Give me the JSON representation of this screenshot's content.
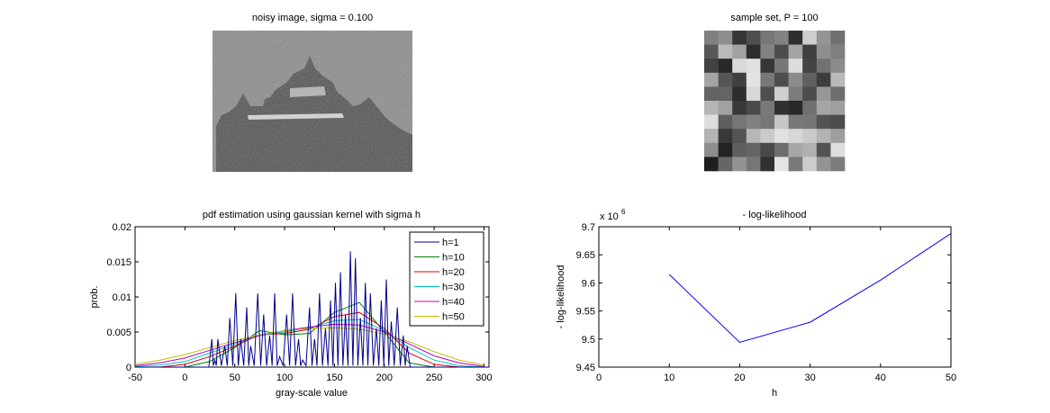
{
  "figure": {
    "noisy_title": "noisy image, sigma = 0.100",
    "sample_title": "sample set, P = 100"
  },
  "chart_data": [
    {
      "type": "line",
      "title": "pdf estimation using gaussian kernel with sigma h",
      "xlabel": "gray-scale value",
      "ylabel": "prob.",
      "xlim": [
        -50,
        305
      ],
      "ylim": [
        0,
        0.02
      ],
      "xticks": [
        "-50",
        "0",
        "50",
        "100",
        "150",
        "200",
        "250",
        "300"
      ],
      "yticks": [
        "0",
        "0.005",
        "0.01",
        "0.015",
        "0.02"
      ],
      "legend_position": "top-right",
      "series": [
        {
          "name": "h=1",
          "color": "#00008b"
        },
        {
          "name": "h=10",
          "color": "#008000"
        },
        {
          "name": "h=20",
          "color": "#e00000"
        },
        {
          "name": "h=30",
          "color": "#00bfbf"
        },
        {
          "name": "h=40",
          "color": "#bf00bf"
        },
        {
          "name": "h=50",
          "color": "#bfbf00"
        }
      ],
      "x": [
        -50,
        -25,
        0,
        25,
        50,
        75,
        100,
        125,
        150,
        175,
        200,
        225,
        250,
        275,
        300
      ],
      "values": {
        "h=10": [
          0,
          0,
          0,
          0.0008,
          0.0028,
          0.0052,
          0.0046,
          0.0048,
          0.0078,
          0.0092,
          0.005,
          0.0006,
          0,
          0,
          0
        ],
        "h=20": [
          0,
          0,
          0.0004,
          0.0015,
          0.003,
          0.0046,
          0.0048,
          0.0054,
          0.0072,
          0.0078,
          0.0055,
          0.002,
          0.0004,
          0,
          0
        ],
        "h=30": [
          0.0001,
          0.0003,
          0.0008,
          0.002,
          0.0033,
          0.0045,
          0.005,
          0.0056,
          0.0066,
          0.0068,
          0.0052,
          0.0028,
          0.001,
          0.0002,
          0
        ],
        "h=40": [
          0.0002,
          0.0006,
          0.0013,
          0.0024,
          0.0035,
          0.0045,
          0.0052,
          0.0057,
          0.0061,
          0.006,
          0.005,
          0.0033,
          0.0016,
          0.0006,
          0.0001
        ],
        "h=50": [
          0.0004,
          0.001,
          0.0018,
          0.0028,
          0.0038,
          0.0046,
          0.0052,
          0.0055,
          0.0056,
          0.0054,
          0.0047,
          0.0036,
          0.0022,
          0.001,
          0.0003
        ]
      },
      "h1_peaks": [
        [
          27,
          0.004
        ],
        [
          30,
          0.001
        ],
        [
          33,
          0.004
        ],
        [
          40,
          0.003
        ],
        [
          45,
          0.007
        ],
        [
          51,
          0.0105
        ],
        [
          56,
          0.004
        ],
        [
          62,
          0.0085
        ],
        [
          66,
          0.003
        ],
        [
          73,
          0.0105
        ],
        [
          79,
          0.0075
        ],
        [
          85,
          0.0045
        ],
        [
          90,
          0.0105
        ],
        [
          95,
          0.0015
        ],
        [
          102,
          0.0075
        ],
        [
          108,
          0.0105
        ],
        [
          114,
          0.004
        ],
        [
          118,
          0.001
        ],
        [
          125,
          0.0085
        ],
        [
          130,
          0.004
        ],
        [
          135,
          0.0105
        ],
        [
          141,
          0.0055
        ],
        [
          146,
          0.0095
        ],
        [
          151,
          0.012
        ],
        [
          156,
          0.0135
        ],
        [
          161,
          0.0075
        ],
        [
          166,
          0.0165
        ],
        [
          171,
          0.0155
        ],
        [
          176,
          0.007
        ],
        [
          181,
          0.012
        ],
        [
          186,
          0.0105
        ],
        [
          192,
          0.0055
        ],
        [
          197,
          0.0095
        ],
        [
          202,
          0.0125
        ],
        [
          207,
          0.0065
        ],
        [
          213,
          0.0085
        ],
        [
          219,
          0.0045
        ],
        [
          223,
          0.003
        ]
      ]
    },
    {
      "type": "line",
      "title": "- log-likelihood",
      "xlabel": "h",
      "ylabel": "- log-likelihood",
      "exponent_label": "x 10",
      "exponent_value": "6",
      "xlim": [
        0,
        50
      ],
      "ylim": [
        9.45,
        9.7
      ],
      "xticks": [
        "0",
        "10",
        "20",
        "30",
        "40",
        "50"
      ],
      "yticks": [
        "9.45",
        "9.5",
        "9.55",
        "9.6",
        "9.65",
        "9.7"
      ],
      "series": [
        {
          "color": "#0000ff",
          "x": [
            10,
            20,
            30,
            40,
            50
          ],
          "y": [
            9.615,
            9.494,
            9.53,
            9.605,
            9.688
          ]
        }
      ]
    }
  ]
}
